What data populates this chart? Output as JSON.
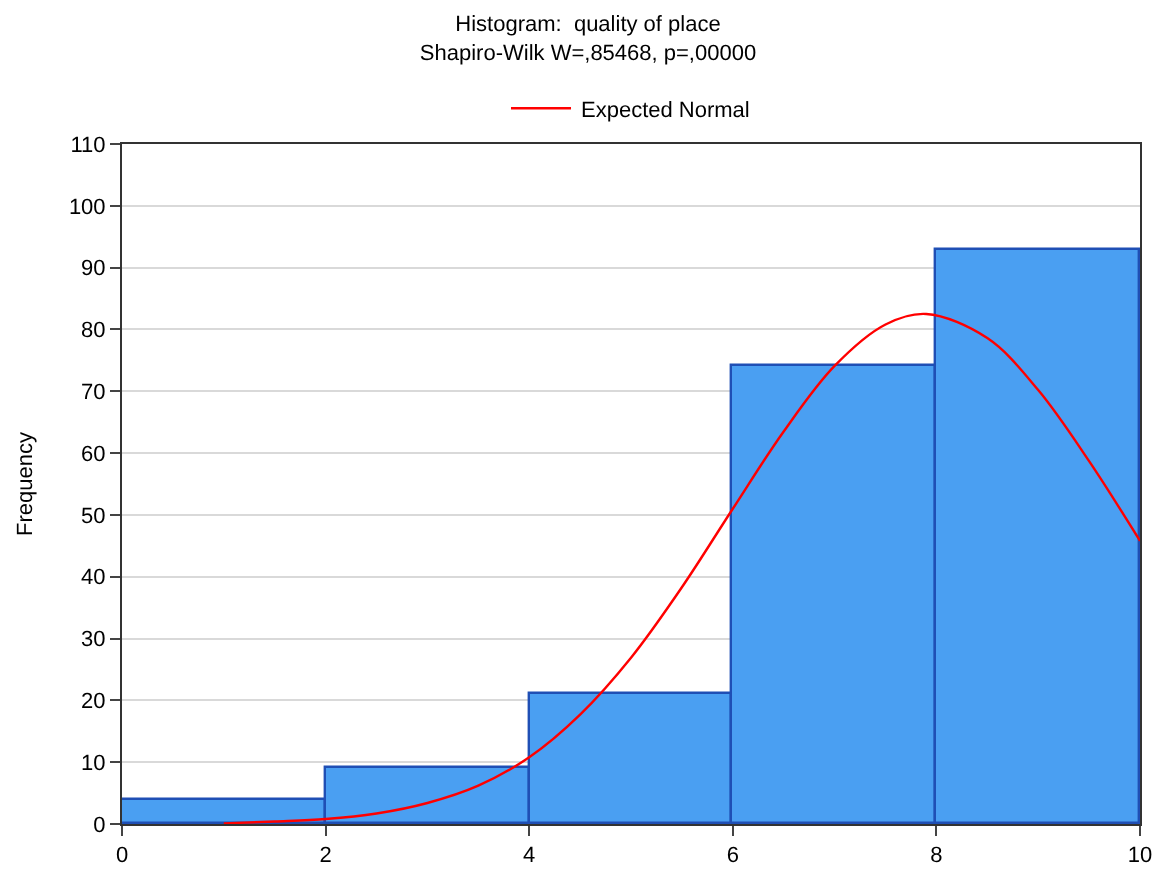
{
  "chart_data": {
    "type": "histogram",
    "title": "Histogram:  quality of place",
    "subtitle": "Shapiro-Wilk W=,85468, p=,00000",
    "ylabel": "Frequency",
    "bins": [
      0,
      2,
      4,
      6,
      8,
      10
    ],
    "values": [
      4,
      9,
      21,
      74,
      93
    ],
    "color": "#4a9ff2",
    "series": [
      {
        "name": "Expected Normal",
        "type": "line",
        "color": "#ff0000",
        "x": [
          1,
          1.5,
          2,
          2.5,
          3,
          3.5,
          4,
          4.5,
          5,
          5.5,
          6,
          6.5,
          7,
          7.5,
          7.9,
          8.5,
          9,
          9.5,
          10
        ],
        "values": [
          0.1,
          0.4,
          0.8,
          1.7,
          3.4,
          6.2,
          10.8,
          17.7,
          26.9,
          38.3,
          51,
          63.5,
          74.1,
          80.8,
          82.5,
          78.6,
          70.2,
          58.7,
          45.8
        ]
      }
    ],
    "xlim": [
      0,
      10
    ],
    "xticks": [
      0,
      2,
      4,
      6,
      8,
      10
    ],
    "ylim": [
      0,
      110
    ],
    "yticks": [
      0,
      10,
      20,
      30,
      40,
      50,
      60,
      70,
      80,
      90,
      100,
      110
    ],
    "grid": "y",
    "legend": "top"
  }
}
